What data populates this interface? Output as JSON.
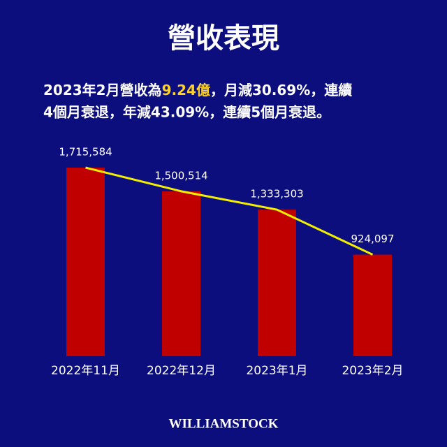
{
  "chart_data": {
    "type": "bar",
    "title": "營收表現",
    "subtitle_line1_pre": "2023年2月營收為",
    "subtitle_highlight": "9.24億",
    "subtitle_line1_post": "，月減30.69%，連續",
    "subtitle_line2": "4個月衰退，年減43.09%，連續5個月衰退。",
    "categories": [
      "2022年11月",
      "2022年12月",
      "2023年1月",
      "2023年2月"
    ],
    "values": [
      1715584,
      1500514,
      1333303,
      924097
    ],
    "value_labels": [
      "1,715,584",
      "1,500,514",
      "1,333,303",
      "924,097"
    ],
    "color": "#c00000",
    "line_color": "#f2ee00",
    "footer": "WILLIAMSTOCK"
  }
}
